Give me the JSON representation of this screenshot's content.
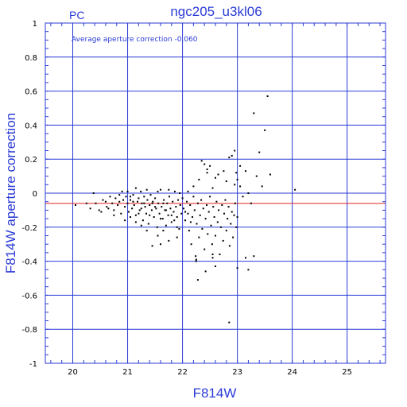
{
  "chart_data": {
    "type": "scatter",
    "title": "ngc205_u3kl06",
    "corner_label": "PC",
    "annotation": "Average aperture correction  -0.060",
    "xlabel": "F814W",
    "ylabel": "F814W aperture correction",
    "xlim": [
      19.5,
      25.7
    ],
    "ylim": [
      -1,
      1
    ],
    "xticks": [
      20,
      21,
      22,
      23,
      24,
      25
    ],
    "yticks": [
      1,
      0.8,
      0.6,
      0.4,
      0.2,
      0,
      -0.2,
      -0.4,
      -0.6,
      -0.8,
      -1
    ],
    "ytick_labels": [
      "1",
      "0.8",
      "0.6",
      "0.4",
      "0.2",
      "0",
      "-0.2",
      "-0.4",
      "-0.6",
      "-0.8",
      "-1"
    ],
    "grid": true,
    "average_line": -0.06,
    "colors": {
      "frame": "#2b3bd6",
      "average_line": "#e02020",
      "points": "#000000"
    },
    "points": [
      [
        20.05,
        -0.07
      ],
      [
        20.25,
        -0.06
      ],
      [
        20.32,
        -0.09
      ],
      [
        20.38,
        0.0
      ],
      [
        20.42,
        -0.06
      ],
      [
        20.48,
        -0.1
      ],
      [
        20.52,
        -0.11
      ],
      [
        20.55,
        -0.04
      ],
      [
        20.6,
        -0.05
      ],
      [
        20.62,
        -0.08
      ],
      [
        20.68,
        -0.02
      ],
      [
        20.72,
        -0.06
      ],
      [
        20.75,
        -0.1
      ],
      [
        20.78,
        -0.03
      ],
      [
        20.82,
        -0.07
      ],
      [
        20.85,
        -0.05
      ],
      [
        20.88,
        -0.12
      ],
      [
        20.9,
        0.01
      ],
      [
        20.92,
        -0.04
      ],
      [
        20.95,
        -0.08
      ],
      [
        20.97,
        -0.02
      ],
      [
        21.0,
        -0.06
      ],
      [
        21.02,
        -0.11
      ],
      [
        21.05,
        -0.04
      ],
      [
        21.08,
        -0.09
      ],
      [
        21.1,
        -0.01
      ],
      [
        21.12,
        -0.07
      ],
      [
        21.15,
        -0.13
      ],
      [
        21.18,
        -0.05
      ],
      [
        21.2,
        -0.03
      ],
      [
        21.22,
        -0.1
      ],
      [
        21.24,
        0.01
      ],
      [
        21.26,
        -0.06
      ],
      [
        21.28,
        -0.16
      ],
      [
        21.3,
        -0.02
      ],
      [
        21.32,
        -0.08
      ],
      [
        21.34,
        -0.12
      ],
      [
        21.36,
        -0.04
      ],
      [
        21.38,
        -0.18
      ],
      [
        21.4,
        -0.07
      ],
      [
        21.42,
        -0.01
      ],
      [
        21.44,
        -0.1
      ],
      [
        21.46,
        -0.05
      ],
      [
        21.48,
        -0.14
      ],
      [
        21.5,
        -0.03
      ],
      [
        21.52,
        -0.09
      ],
      [
        21.54,
        -0.2
      ],
      [
        21.56,
        -0.06
      ],
      [
        21.58,
        -0.12
      ],
      [
        21.6,
        0.02
      ],
      [
        21.62,
        -0.08
      ],
      [
        21.64,
        -0.15
      ],
      [
        21.66,
        -0.04
      ],
      [
        21.68,
        -0.1
      ],
      [
        21.7,
        -0.19
      ],
      [
        21.72,
        -0.06
      ],
      [
        21.74,
        -0.13
      ],
      [
        21.76,
        -0.02
      ],
      [
        21.78,
        -0.09
      ],
      [
        21.8,
        -0.17
      ],
      [
        21.82,
        -0.05
      ],
      [
        21.84,
        -0.11
      ],
      [
        21.86,
        0.01
      ],
      [
        21.88,
        -0.08
      ],
      [
        21.9,
        -0.14
      ],
      [
        21.92,
        -0.04
      ],
      [
        21.94,
        -0.21
      ],
      [
        21.96,
        -0.07
      ],
      [
        21.98,
        -0.12
      ],
      [
        22.0,
        -0.03
      ],
      [
        21.1,
        -0.05
      ],
      [
        21.2,
        -0.12
      ],
      [
        21.3,
        -0.06
      ],
      [
        21.4,
        -0.13
      ],
      [
        21.5,
        -0.08
      ],
      [
        21.6,
        -0.15
      ],
      [
        21.7,
        -0.1
      ],
      [
        21.8,
        -0.13
      ],
      [
        21.9,
        -0.2
      ],
      [
        21.6,
        -0.3
      ],
      [
        21.75,
        -0.28
      ],
      [
        21.9,
        -0.26
      ],
      [
        21.45,
        -0.31
      ],
      [
        21.35,
        -0.22
      ],
      [
        21.25,
        -0.19
      ],
      [
        21.15,
        -0.17
      ],
      [
        21.05,
        -0.14
      ],
      [
        20.95,
        -0.16
      ],
      [
        21.55,
        -0.25
      ],
      [
        21.65,
        -0.22
      ],
      [
        22.02,
        -0.09
      ],
      [
        22.05,
        -0.16
      ],
      [
        22.08,
        -0.05
      ],
      [
        22.1,
        -0.12
      ],
      [
        22.12,
        -0.22
      ],
      [
        22.14,
        -0.07
      ],
      [
        22.16,
        -0.3
      ],
      [
        22.18,
        -0.14
      ],
      [
        22.2,
        -0.02
      ],
      [
        22.22,
        -0.1
      ],
      [
        22.24,
        -0.37
      ],
      [
        22.26,
        -0.18
      ],
      [
        22.28,
        -0.06
      ],
      [
        22.3,
        -0.26
      ],
      [
        22.32,
        -0.13
      ],
      [
        22.34,
        -0.04
      ],
      [
        22.36,
        -0.21
      ],
      [
        22.38,
        -0.09
      ],
      [
        22.4,
        -0.33
      ],
      [
        22.42,
        -0.15
      ],
      [
        22.44,
        -0.07
      ],
      [
        22.46,
        -0.24
      ],
      [
        22.48,
        -0.11
      ],
      [
        22.5,
        -0.02
      ],
      [
        22.52,
        -0.19
      ],
      [
        22.54,
        -0.3
      ],
      [
        22.56,
        -0.08
      ],
      [
        22.58,
        -0.14
      ],
      [
        22.6,
        -0.25
      ],
      [
        22.62,
        -0.05
      ],
      [
        22.64,
        -0.17
      ],
      [
        22.66,
        -0.1
      ],
      [
        22.68,
        -0.36
      ],
      [
        22.7,
        -0.2
      ],
      [
        22.72,
        -0.07
      ],
      [
        22.74,
        -0.28
      ],
      [
        22.76,
        -0.12
      ],
      [
        22.78,
        -0.04
      ],
      [
        22.8,
        -0.22
      ],
      [
        22.82,
        -0.15
      ],
      [
        22.84,
        -0.08
      ],
      [
        22.86,
        -0.31
      ],
      [
        22.88,
        -0.18
      ],
      [
        22.9,
        -0.11
      ],
      [
        22.92,
        -0.26
      ],
      [
        22.94,
        -0.13
      ],
      [
        22.96,
        -0.06
      ],
      [
        22.98,
        -0.2
      ],
      [
        23.0,
        -0.14
      ],
      [
        22.25,
        -0.39
      ],
      [
        22.25,
        -0.4
      ],
      [
        22.28,
        -0.51
      ],
      [
        22.42,
        -0.46
      ],
      [
        22.55,
        -0.36
      ],
      [
        22.55,
        -0.38
      ],
      [
        22.6,
        -0.43
      ],
      [
        23.0,
        -0.44
      ],
      [
        23.2,
        -0.45
      ],
      [
        23.3,
        -0.37
      ],
      [
        23.15,
        -0.38
      ],
      [
        22.85,
        -0.76
      ],
      [
        22.35,
        0.19
      ],
      [
        22.4,
        0.17
      ],
      [
        22.45,
        0.14
      ],
      [
        22.5,
        0.16
      ],
      [
        22.55,
        0.03
      ],
      [
        22.6,
        0.09
      ],
      [
        22.65,
        0.11
      ],
      [
        22.75,
        0.13
      ],
      [
        22.8,
        0.07
      ],
      [
        22.85,
        0.21
      ],
      [
        22.9,
        0.22
      ],
      [
        22.95,
        0.05
      ],
      [
        23.0,
        0.08
      ],
      [
        23.05,
        0.16
      ],
      [
        23.1,
        -0.02
      ],
      [
        23.15,
        0.13
      ],
      [
        23.2,
        0.0
      ],
      [
        23.25,
        -0.06
      ],
      [
        23.3,
        0.47
      ],
      [
        23.35,
        0.1
      ],
      [
        23.4,
        0.24
      ],
      [
        23.45,
        0.04
      ],
      [
        23.5,
        0.37
      ],
      [
        23.55,
        0.57
      ],
      [
        23.6,
        0.11
      ],
      [
        24.05,
        0.02
      ],
      [
        22.98,
        0.12
      ],
      [
        22.95,
        0.25
      ],
      [
        23.05,
        0.04
      ],
      [
        21.0,
        0.01
      ],
      [
        21.15,
        0.03
      ],
      [
        21.35,
        0.02
      ],
      [
        21.55,
        0.01
      ],
      [
        21.75,
        0.02
      ],
      [
        21.95,
        0.0
      ],
      [
        22.1,
        0.01
      ],
      [
        22.2,
        0.04
      ],
      [
        22.3,
        0.08
      ],
      [
        22.45,
        0.12
      ],
      [
        21.05,
        -0.02
      ],
      [
        20.85,
        -0.01
      ],
      [
        20.75,
        -0.13
      ],
      [
        20.65,
        -0.09
      ],
      [
        21.25,
        -0.09
      ],
      [
        21.45,
        -0.06
      ],
      [
        21.65,
        -0.06
      ],
      [
        21.85,
        -0.16
      ],
      [
        22.05,
        -0.11
      ],
      [
        22.15,
        -0.17
      ]
    ]
  }
}
